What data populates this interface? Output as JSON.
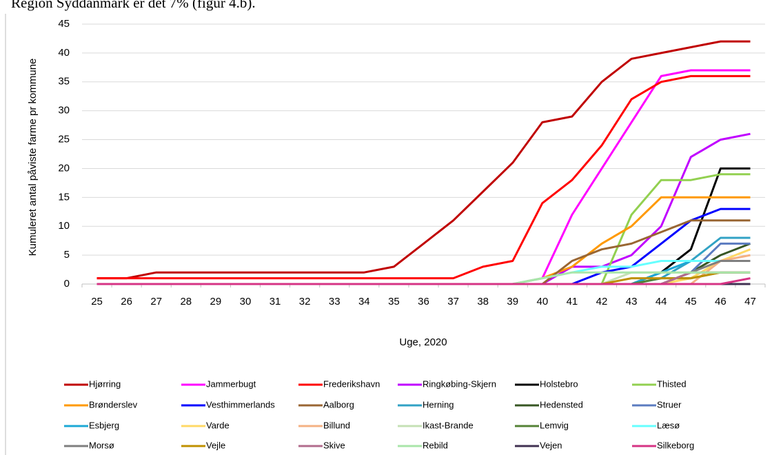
{
  "header_text": "Region Syddanmark er det 7% (figur 4.b).",
  "chart_data": {
    "type": "line",
    "ylabel": "Kumuleret antal påviste farme pr kommune",
    "xlabel": "Uge, 2020",
    "categories": [
      "25",
      "26",
      "27",
      "28",
      "29",
      "30",
      "31",
      "32",
      "33",
      "34",
      "35",
      "36",
      "37",
      "38",
      "39",
      "40",
      "41",
      "42",
      "43",
      "44",
      "45",
      "46",
      "47"
    ],
    "ylim": [
      0,
      45
    ],
    "yticks": [
      0,
      5,
      10,
      15,
      20,
      25,
      30,
      35,
      40,
      45
    ],
    "grid": true,
    "legend": "bottom",
    "series": [
      {
        "name": "Hjørring",
        "color": "#c00000",
        "values": [
          1,
          1,
          2,
          2,
          2,
          2,
          2,
          2,
          2,
          2,
          3,
          7,
          11,
          16,
          21,
          28,
          29,
          35,
          39,
          40,
          41,
          42,
          42
        ]
      },
      {
        "name": "Jammerbugt",
        "color": "#ff00ff",
        "values": [
          0,
          0,
          0,
          0,
          0,
          0,
          0,
          0,
          0,
          0,
          0,
          0,
          0,
          0,
          0,
          1,
          12,
          20,
          28,
          36,
          37,
          37,
          37
        ]
      },
      {
        "name": "Frederikshavn",
        "color": "#ff0000",
        "values": [
          1,
          1,
          1,
          1,
          1,
          1,
          1,
          1,
          1,
          1,
          1,
          1,
          1,
          3,
          4,
          14,
          18,
          24,
          32,
          35,
          36,
          36,
          36
        ]
      },
      {
        "name": "Ringkøbing-Skjern",
        "color": "#c000ff",
        "values": [
          0,
          0,
          0,
          0,
          0,
          0,
          0,
          0,
          0,
          0,
          0,
          0,
          0,
          0,
          0,
          0,
          3,
          3,
          5,
          10,
          22,
          25,
          26
        ]
      },
      {
        "name": "Holstebro",
        "color": "#000000",
        "values": [
          0,
          0,
          0,
          0,
          0,
          0,
          0,
          0,
          0,
          0,
          0,
          0,
          0,
          0,
          0,
          0,
          0,
          0,
          0,
          2,
          6,
          20,
          20
        ]
      },
      {
        "name": "Thisted",
        "color": "#92d050",
        "values": [
          0,
          0,
          0,
          0,
          0,
          0,
          0,
          0,
          0,
          0,
          0,
          0,
          0,
          0,
          0,
          0,
          0,
          0,
          12,
          18,
          18,
          19,
          19
        ]
      },
      {
        "name": "Brønderslev",
        "color": "#ff9900",
        "values": [
          0,
          0,
          0,
          0,
          0,
          0,
          0,
          0,
          0,
          0,
          0,
          0,
          0,
          0,
          0,
          1,
          3,
          7,
          10,
          15,
          15,
          15,
          15
        ]
      },
      {
        "name": "Vesthimmerlands",
        "color": "#0000ff",
        "values": [
          0,
          0,
          0,
          0,
          0,
          0,
          0,
          0,
          0,
          0,
          0,
          0,
          0,
          0,
          0,
          0,
          0,
          2,
          3,
          7,
          11,
          13,
          13
        ]
      },
      {
        "name": "Aalborg",
        "color": "#996633",
        "values": [
          0,
          0,
          0,
          0,
          0,
          0,
          0,
          0,
          0,
          0,
          0,
          0,
          0,
          0,
          0,
          0,
          4,
          6,
          7,
          9,
          11,
          11,
          11
        ]
      },
      {
        "name": "Herning",
        "color": "#31a2c4",
        "values": [
          0,
          0,
          0,
          0,
          0,
          0,
          0,
          0,
          0,
          0,
          0,
          0,
          0,
          0,
          0,
          0,
          0,
          0,
          0,
          1,
          4,
          8,
          8
        ]
      },
      {
        "name": "Hedensted",
        "color": "#375623",
        "values": [
          0,
          0,
          0,
          0,
          0,
          0,
          0,
          0,
          0,
          0,
          0,
          0,
          0,
          0,
          0,
          0,
          0,
          0,
          0,
          0,
          2,
          5,
          7
        ]
      },
      {
        "name": "Struer",
        "color": "#5b7bc0",
        "values": [
          0,
          0,
          0,
          0,
          0,
          0,
          0,
          0,
          0,
          0,
          0,
          0,
          0,
          0,
          0,
          0,
          0,
          0,
          0,
          0,
          2,
          7,
          7
        ]
      },
      {
        "name": "Esbjerg",
        "color": "#1ca8d6",
        "values": [
          0,
          0,
          0,
          0,
          0,
          0,
          0,
          0,
          0,
          0,
          0,
          0,
          0,
          0,
          0,
          0,
          0,
          0,
          0,
          2,
          4,
          4,
          4
        ]
      },
      {
        "name": "Varde",
        "color": "#ffd966",
        "values": [
          0,
          0,
          0,
          0,
          0,
          0,
          0,
          0,
          0,
          0,
          0,
          0,
          0,
          0,
          0,
          0,
          0,
          0,
          0,
          0,
          1,
          4,
          6
        ]
      },
      {
        "name": "Billund",
        "color": "#f4b183",
        "values": [
          0,
          0,
          0,
          0,
          0,
          0,
          0,
          0,
          0,
          0,
          0,
          0,
          0,
          0,
          0,
          0,
          0,
          0,
          0,
          0,
          0,
          4,
          5
        ]
      },
      {
        "name": "Ikast-Brande",
        "color": "#c5e0b4",
        "values": [
          0,
          0,
          0,
          0,
          0,
          0,
          0,
          0,
          0,
          0,
          0,
          0,
          0,
          0,
          0,
          0,
          0,
          0,
          2,
          2,
          2,
          2,
          2
        ]
      },
      {
        "name": "Lemvig",
        "color": "#548235",
        "values": [
          0,
          0,
          0,
          0,
          0,
          0,
          0,
          0,
          0,
          0,
          0,
          0,
          0,
          0,
          0,
          0,
          0,
          0,
          0,
          1,
          1,
          2,
          2
        ]
      },
      {
        "name": "Læsø",
        "color": "#66ffff",
        "values": [
          0,
          0,
          0,
          0,
          0,
          0,
          0,
          0,
          0,
          0,
          0,
          0,
          0,
          0,
          0,
          1,
          2,
          3,
          3,
          4,
          4,
          4,
          4
        ]
      },
      {
        "name": "Morsø",
        "color": "#7f7f7f",
        "values": [
          0,
          0,
          0,
          0,
          0,
          0,
          0,
          0,
          0,
          0,
          0,
          0,
          0,
          0,
          0,
          0,
          0,
          0,
          0,
          0,
          2,
          4,
          4
        ]
      },
      {
        "name": "Vejle",
        "color": "#bf9000",
        "values": [
          0,
          0,
          0,
          0,
          0,
          0,
          0,
          0,
          0,
          0,
          0,
          0,
          0,
          0,
          0,
          0,
          0,
          0,
          1,
          1,
          1,
          2,
          2
        ]
      },
      {
        "name": "Skive",
        "color": "#b26b8c",
        "values": [
          0,
          0,
          0,
          0,
          0,
          0,
          0,
          0,
          0,
          0,
          0,
          0,
          0,
          0,
          0,
          0,
          0,
          0,
          0,
          0,
          2,
          2,
          2
        ]
      },
      {
        "name": "Rebild",
        "color": "#a9e6a9",
        "values": [
          0,
          0,
          0,
          0,
          0,
          0,
          0,
          0,
          0,
          0,
          0,
          0,
          0,
          0,
          0,
          1,
          2,
          2,
          2,
          2,
          2,
          2,
          2
        ]
      },
      {
        "name": "Vejen",
        "color": "#403152",
        "values": [
          0,
          0,
          0,
          0,
          0,
          0,
          0,
          0,
          0,
          0,
          0,
          0,
          0,
          0,
          0,
          0,
          0,
          0,
          0,
          0,
          0,
          0,
          0
        ]
      },
      {
        "name": "Silkeborg",
        "color": "#d63384",
        "values": [
          0,
          0,
          0,
          0,
          0,
          0,
          0,
          0,
          0,
          0,
          0,
          0,
          0,
          0,
          0,
          0,
          0,
          0,
          0,
          0,
          0,
          0,
          1
        ]
      }
    ]
  }
}
